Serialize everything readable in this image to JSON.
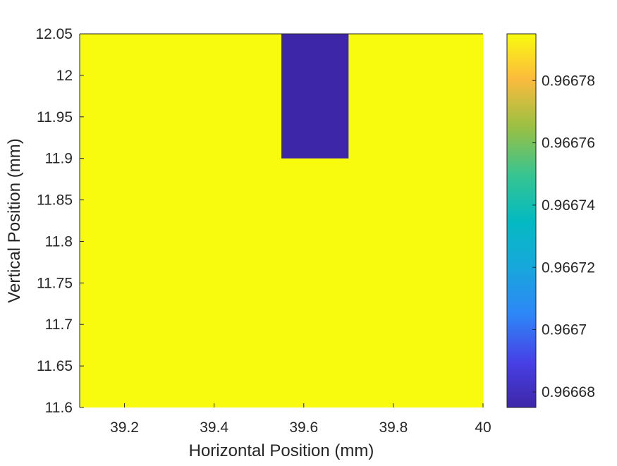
{
  "chart_data": {
    "type": "heatmap",
    "title": "",
    "xlabel": "Horizontal Position (mm)",
    "ylabel": "Vertical Position (mm)",
    "xlim": [
      39.1,
      40.0
    ],
    "ylim": [
      11.6,
      12.05
    ],
    "x_ticks": [
      39.2,
      39.4,
      39.6,
      39.8,
      40
    ],
    "x_tick_labels": [
      "39.2",
      "39.4",
      "39.6",
      "39.8",
      "40"
    ],
    "y_ticks": [
      11.6,
      11.65,
      11.7,
      11.75,
      11.8,
      11.85,
      11.9,
      11.95,
      12,
      12.05
    ],
    "y_tick_labels": [
      "11.6",
      "11.65",
      "11.7",
      "11.75",
      "11.8",
      "11.85",
      "11.9",
      "11.95",
      "12",
      "12.05"
    ],
    "background_value": 0.966795,
    "cells": [
      {
        "x_range": [
          39.55,
          39.7
        ],
        "y_range": [
          11.9,
          12.05
        ],
        "value": 0.966675
      }
    ],
    "colorbar": {
      "range": [
        0.966675,
        0.966795
      ],
      "ticks": [
        0.96668,
        0.9667,
        0.96672,
        0.96674,
        0.96676,
        0.96678
      ],
      "tick_labels": [
        "0.96668",
        "0.9667",
        "0.96672",
        "0.96674",
        "0.96676",
        "0.96678"
      ],
      "colormap": "parula",
      "low_color": "#3e26a8",
      "high_color": "#f9fb0e"
    },
    "grid": false
  }
}
